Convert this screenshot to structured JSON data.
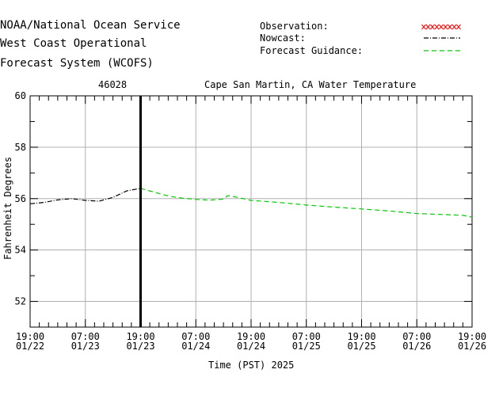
{
  "header": {
    "line1": "NOAA/National Ocean Service",
    "line2": "West Coast Operational",
    "line3": "Forecast System (WCOFS)"
  },
  "legend": {
    "observation": "Observation:",
    "nowcast": "Nowcast:",
    "forecast": "Forecast Guidance:"
  },
  "colors": {
    "observation": "#ff0000",
    "nowcast": "#000000",
    "forecast": "#00cc00",
    "grid": "#b0b0b0"
  },
  "chart_data": {
    "type": "line",
    "station": "46028",
    "title": "Cape San Martin, CA Water Temperature",
    "xlabel": "Time (PST) 2025",
    "ylabel": "Fahrenheit Degrees",
    "ylim": [
      51,
      60
    ],
    "xlim_hours_label": "19:00 01/22 to 19:00 01/26",
    "y_ticks": [
      "52",
      "54",
      "56",
      "58",
      "60"
    ],
    "x_ticks": [
      {
        "time": "19:00",
        "date": "01/22"
      },
      {
        "time": "07:00",
        "date": "01/23"
      },
      {
        "time": "19:00",
        "date": "01/23"
      },
      {
        "time": "07:00",
        "date": "01/24"
      },
      {
        "time": "19:00",
        "date": "01/24"
      },
      {
        "time": "07:00",
        "date": "01/25"
      },
      {
        "time": "19:00",
        "date": "01/25"
      },
      {
        "time": "07:00",
        "date": "01/26"
      },
      {
        "time": "19:00",
        "date": "01/26"
      }
    ],
    "nowcast_marker": "01/23 19:00",
    "series": [
      {
        "name": "Nowcast",
        "style": "dash-dot",
        "points": [
          [
            "01/22 19:00",
            55.8
          ],
          [
            "01/22 22:00",
            55.85
          ],
          [
            "01/23 01:00",
            55.95
          ],
          [
            "01/23 04:00",
            56.0
          ],
          [
            "01/23 07:00",
            55.93
          ],
          [
            "01/23 10:00",
            55.9
          ],
          [
            "01/23 13:00",
            56.05
          ],
          [
            "01/23 16:00",
            56.3
          ],
          [
            "01/23 19:00",
            56.4
          ]
        ]
      },
      {
        "name": "Forecast Guidance",
        "style": "dashed",
        "points": [
          [
            "01/23 19:00",
            56.4
          ],
          [
            "01/23 22:00",
            56.25
          ],
          [
            "01/24 01:00",
            56.1
          ],
          [
            "01/24 04:00",
            56.02
          ],
          [
            "01/24 07:00",
            55.97
          ],
          [
            "01/24 10:00",
            55.94
          ],
          [
            "01/24 13:00",
            55.98
          ],
          [
            "01/24 14:00",
            56.12
          ],
          [
            "01/24 16:00",
            56.05
          ],
          [
            "01/24 19:00",
            55.93
          ],
          [
            "01/25 01:00",
            55.85
          ],
          [
            "01/25 07:00",
            55.75
          ],
          [
            "01/25 13:00",
            55.67
          ],
          [
            "01/25 19:00",
            55.6
          ],
          [
            "01/26 01:00",
            55.52
          ],
          [
            "01/26 07:00",
            55.42
          ],
          [
            "01/26 13:00",
            55.38
          ],
          [
            "01/26 17:00",
            55.35
          ],
          [
            "01/26 19:00",
            55.28
          ]
        ]
      }
    ]
  }
}
